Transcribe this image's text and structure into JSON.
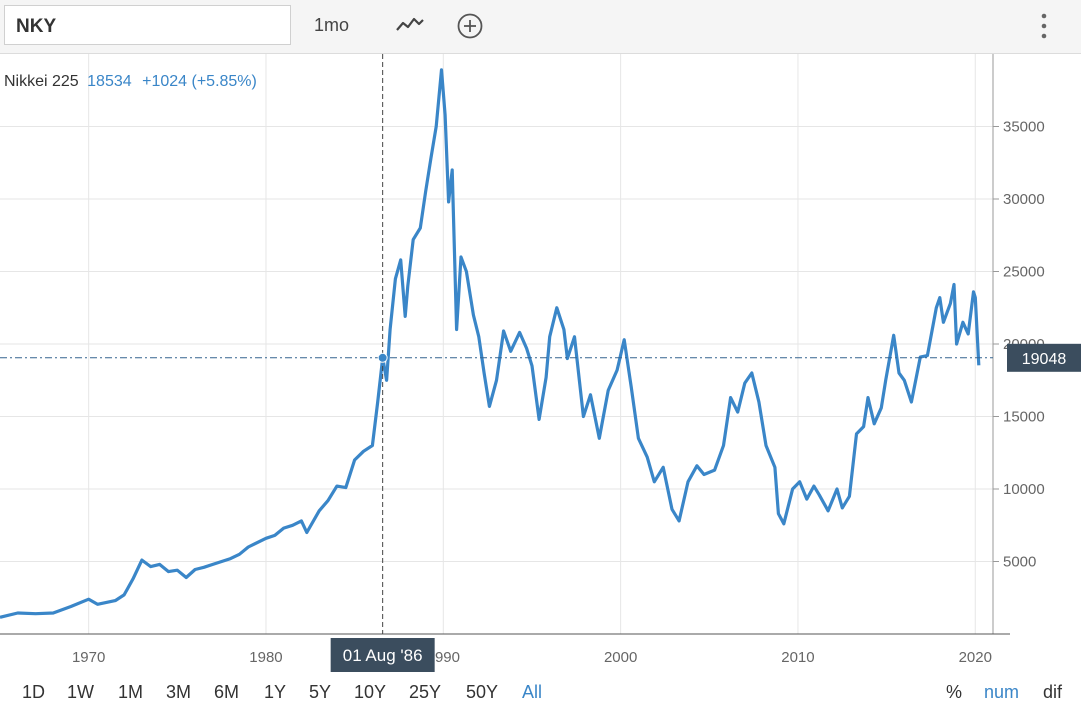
{
  "toolbar": {
    "symbol": "NKY",
    "interval": "1mo",
    "chart_type_icon": "line-chart-icon",
    "add_icon": "plus-circle-icon",
    "menu_icon": "kebab-menu-icon"
  },
  "legend": {
    "name": "Nikkei 225",
    "value": "18534",
    "change": "+1024 (+5.85%)"
  },
  "crosshair": {
    "date_label": "01 Aug '86",
    "price_label": "19048",
    "x": 1986.58,
    "y": 19048
  },
  "ranges": [
    "1D",
    "1W",
    "1M",
    "3M",
    "6M",
    "1Y",
    "5Y",
    "10Y",
    "25Y",
    "50Y",
    "All"
  ],
  "active_range": "All",
  "modes": [
    "%",
    "num",
    "dif"
  ],
  "active_mode": "num",
  "colors": {
    "line": "#3a86c8",
    "accent": "#3a86c8",
    "grid": "#e6e6e6"
  },
  "chart_data": {
    "type": "line",
    "title": "",
    "xlabel": "",
    "ylabel": "",
    "xlim": [
      1965,
      2021
    ],
    "ylim": [
      0,
      40000
    ],
    "xticks": [
      1970,
      1980,
      1990,
      2000,
      2010,
      2020
    ],
    "yticks": [
      5000,
      10000,
      15000,
      20000,
      25000,
      30000,
      35000
    ],
    "grid": true,
    "series": [
      {
        "name": "Nikkei 225",
        "points": [
          [
            1965.0,
            1150
          ],
          [
            1966.0,
            1450
          ],
          [
            1967.0,
            1400
          ],
          [
            1968.0,
            1450
          ],
          [
            1969.0,
            1900
          ],
          [
            1970.0,
            2400
          ],
          [
            1970.5,
            2050
          ],
          [
            1971.5,
            2300
          ],
          [
            1972.0,
            2700
          ],
          [
            1972.5,
            3800
          ],
          [
            1973.0,
            5100
          ],
          [
            1973.5,
            4650
          ],
          [
            1974.0,
            4800
          ],
          [
            1974.5,
            4300
          ],
          [
            1975.0,
            4400
          ],
          [
            1975.5,
            3900
          ],
          [
            1976.0,
            4450
          ],
          [
            1976.5,
            4600
          ],
          [
            1977.0,
            4800
          ],
          [
            1978.0,
            5200
          ],
          [
            1978.5,
            5500
          ],
          [
            1979.0,
            6000
          ],
          [
            1980.0,
            6600
          ],
          [
            1980.5,
            6800
          ],
          [
            1981.0,
            7300
          ],
          [
            1981.5,
            7500
          ],
          [
            1982.0,
            7800
          ],
          [
            1982.3,
            7000
          ],
          [
            1983.0,
            8500
          ],
          [
            1983.5,
            9200
          ],
          [
            1984.0,
            10200
          ],
          [
            1984.5,
            10100
          ],
          [
            1985.0,
            12000
          ],
          [
            1985.5,
            12600
          ],
          [
            1986.0,
            13000
          ],
          [
            1986.3,
            16000
          ],
          [
            1986.58,
            19048
          ],
          [
            1986.8,
            17500
          ],
          [
            1987.0,
            21000
          ],
          [
            1987.3,
            24500
          ],
          [
            1987.6,
            25800
          ],
          [
            1987.85,
            21900
          ],
          [
            1988.0,
            24000
          ],
          [
            1988.3,
            27200
          ],
          [
            1988.7,
            28000
          ],
          [
            1989.0,
            30500
          ],
          [
            1989.3,
            32800
          ],
          [
            1989.6,
            35000
          ],
          [
            1989.9,
            38900
          ],
          [
            1990.1,
            35800
          ],
          [
            1990.3,
            29800
          ],
          [
            1990.5,
            32000
          ],
          [
            1990.75,
            21000
          ],
          [
            1991.0,
            26000
          ],
          [
            1991.3,
            25000
          ],
          [
            1991.7,
            22000
          ],
          [
            1992.0,
            20500
          ],
          [
            1992.3,
            18000
          ],
          [
            1992.6,
            15700
          ],
          [
            1993.0,
            17500
          ],
          [
            1993.4,
            20900
          ],
          [
            1993.8,
            19500
          ],
          [
            1994.3,
            20800
          ],
          [
            1994.7,
            19700
          ],
          [
            1995.0,
            18500
          ],
          [
            1995.4,
            14800
          ],
          [
            1995.8,
            17700
          ],
          [
            1996.0,
            20500
          ],
          [
            1996.4,
            22500
          ],
          [
            1996.8,
            21000
          ],
          [
            1997.0,
            19000
          ],
          [
            1997.4,
            20500
          ],
          [
            1997.9,
            15000
          ],
          [
            1998.3,
            16500
          ],
          [
            1998.8,
            13500
          ],
          [
            1999.3,
            16800
          ],
          [
            1999.8,
            18200
          ],
          [
            2000.2,
            20300
          ],
          [
            2000.6,
            17000
          ],
          [
            2001.0,
            13500
          ],
          [
            2001.5,
            12200
          ],
          [
            2001.9,
            10500
          ],
          [
            2002.4,
            11500
          ],
          [
            2002.9,
            8600
          ],
          [
            2003.3,
            7800
          ],
          [
            2003.8,
            10500
          ],
          [
            2004.3,
            11600
          ],
          [
            2004.7,
            11000
          ],
          [
            2005.3,
            11300
          ],
          [
            2005.8,
            13000
          ],
          [
            2006.2,
            16300
          ],
          [
            2006.6,
            15300
          ],
          [
            2007.0,
            17300
          ],
          [
            2007.4,
            18000
          ],
          [
            2007.8,
            16000
          ],
          [
            2008.2,
            13000
          ],
          [
            2008.7,
            11500
          ],
          [
            2008.9,
            8300
          ],
          [
            2009.2,
            7600
          ],
          [
            2009.7,
            10000
          ],
          [
            2010.1,
            10500
          ],
          [
            2010.5,
            9300
          ],
          [
            2010.9,
            10200
          ],
          [
            2011.2,
            9600
          ],
          [
            2011.7,
            8500
          ],
          [
            2012.2,
            10000
          ],
          [
            2012.5,
            8700
          ],
          [
            2012.9,
            9500
          ],
          [
            2013.3,
            13800
          ],
          [
            2013.7,
            14300
          ],
          [
            2013.95,
            16300
          ],
          [
            2014.3,
            14500
          ],
          [
            2014.7,
            15600
          ],
          [
            2014.95,
            17500
          ],
          [
            2015.4,
            20600
          ],
          [
            2015.7,
            18000
          ],
          [
            2016.0,
            17500
          ],
          [
            2016.4,
            16000
          ],
          [
            2016.9,
            19100
          ],
          [
            2017.3,
            19200
          ],
          [
            2017.8,
            22500
          ],
          [
            2018.0,
            23200
          ],
          [
            2018.2,
            21500
          ],
          [
            2018.6,
            22800
          ],
          [
            2018.8,
            24100
          ],
          [
            2018.95,
            20000
          ],
          [
            2019.3,
            21500
          ],
          [
            2019.6,
            20700
          ],
          [
            2019.9,
            23600
          ],
          [
            2020.0,
            23200
          ],
          [
            2020.2,
            18534
          ]
        ]
      }
    ]
  }
}
